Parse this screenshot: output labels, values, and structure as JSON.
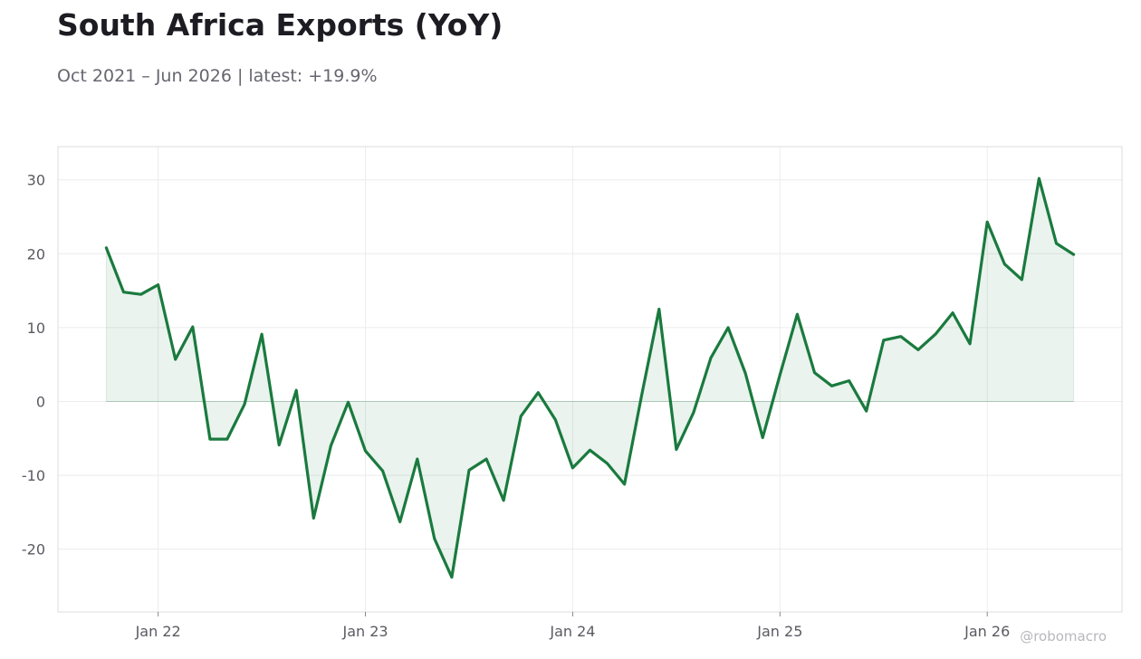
{
  "title": "South Africa Exports (YoY)",
  "subtitle": "Oct 2021 – Jun 2026 | latest: +19.9%",
  "watermark": "@robomacro",
  "colors": {
    "line": "#1a7a3e",
    "fill": "#1a7a3e",
    "grid": "#ececec",
    "frame": "#dddddd",
    "text": "#5a5a62"
  },
  "chart_data": {
    "type": "area",
    "x_start": "2021-10",
    "x_end": "2026-06",
    "x_ticks": [
      {
        "date": "2022-01",
        "label": "Jan 22"
      },
      {
        "date": "2023-01",
        "label": "Jan 23"
      },
      {
        "date": "2024-01",
        "label": "Jan 24"
      },
      {
        "date": "2025-01",
        "label": "Jan 25"
      },
      {
        "date": "2026-01",
        "label": "Jan 26"
      }
    ],
    "y_ticks": [
      30,
      20,
      10,
      0,
      -10,
      -20
    ],
    "ylim": [
      -28.5,
      34.5
    ],
    "grid": true,
    "series": [
      {
        "x": [
          "2021-10",
          "2021-11",
          "2021-12",
          "2022-01",
          "2022-02",
          "2022-03",
          "2022-04",
          "2022-05",
          "2022-06",
          "2022-07",
          "2022-08",
          "2022-09",
          "2022-10",
          "2022-11",
          "2022-12",
          "2023-01",
          "2023-02",
          "2023-03",
          "2023-04",
          "2023-05",
          "2023-06",
          "2023-07",
          "2023-08",
          "2023-09",
          "2023-10",
          "2023-11",
          "2023-12",
          "2024-01",
          "2024-02",
          "2024-03",
          "2024-04",
          "2024-05",
          "2024-06",
          "2024-07",
          "2024-08",
          "2024-09",
          "2024-10",
          "2024-11",
          "2024-12",
          "2025-01",
          "2025-02",
          "2025-03",
          "2025-04",
          "2025-05",
          "2025-06",
          "2025-07",
          "2025-08",
          "2025-09",
          "2025-10",
          "2025-11",
          "2025-12",
          "2026-01",
          "2026-02",
          "2026-03",
          "2026-04",
          "2026-05",
          "2026-06"
        ],
        "values": [
          20.8,
          14.8,
          14.5,
          15.8,
          5.7,
          10.1,
          -5.1,
          -5.1,
          -0.4,
          9.1,
          -5.9,
          1.5,
          -15.8,
          -6.0,
          -0.1,
          -6.7,
          -9.4,
          -16.3,
          -7.8,
          -18.6,
          -23.8,
          -9.3,
          -7.8,
          -13.4,
          -2.0,
          1.2,
          -2.5,
          -9.0,
          -6.6,
          -8.4,
          -11.2,
          0.9,
          12.5,
          -6.5,
          -1.5,
          5.9,
          10.0,
          3.8,
          -4.9,
          3.6,
          11.8,
          3.9,
          2.1,
          2.8,
          -1.3,
          8.3,
          8.8,
          7.0,
          9.1,
          12.0,
          7.8,
          24.3,
          18.6,
          16.5,
          30.2,
          21.4,
          19.9
        ]
      }
    ]
  }
}
